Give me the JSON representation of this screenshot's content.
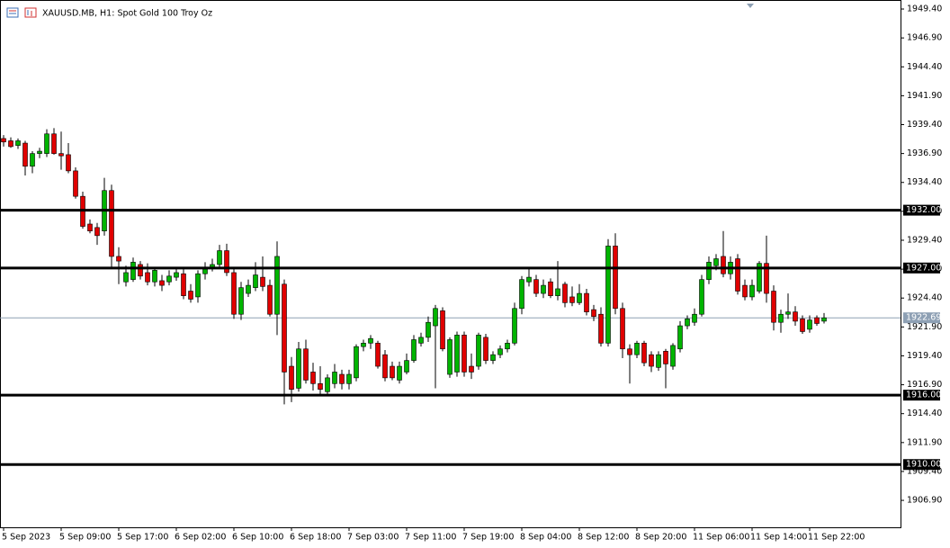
{
  "chart_data": {
    "type": "candlestick",
    "title": "XAUUSD.MB, H1:  Spot Gold 100 Troy Oz",
    "up_color": "#00b400",
    "down_color": "#e00000",
    "level_color": "#000000",
    "last_price_color": "#8ea0b4",
    "ylim": [
      1904.57,
      1950.18
    ],
    "yticks": [
      {
        "value": 1949.4,
        "label": "1949.40"
      },
      {
        "value": 1946.9,
        "label": "1946.90"
      },
      {
        "value": 1944.4,
        "label": "1944.40"
      },
      {
        "value": 1941.9,
        "label": "1941.90"
      },
      {
        "value": 1939.4,
        "label": "1939.40"
      },
      {
        "value": 1936.9,
        "label": "1936.90"
      },
      {
        "value": 1934.4,
        "label": "1934.40"
      },
      {
        "value": 1931.9,
        "label": "1931.90"
      },
      {
        "value": 1929.4,
        "label": "1929.40"
      },
      {
        "value": 1926.9,
        "label": "1926.90"
      },
      {
        "value": 1924.4,
        "label": "1924.40"
      },
      {
        "value": 1921.9,
        "label": "1921.90"
      },
      {
        "value": 1919.4,
        "label": "1919.40"
      },
      {
        "value": 1916.9,
        "label": "1916.90"
      },
      {
        "value": 1914.4,
        "label": "1914.40"
      },
      {
        "value": 1911.9,
        "label": "1911.90"
      },
      {
        "value": 1909.4,
        "label": "1909.40"
      },
      {
        "value": 1906.9,
        "label": "1906.90"
      }
    ],
    "levels": [
      {
        "value": 1932,
        "label": "1932.00"
      },
      {
        "value": 1927,
        "label": "1927.00"
      },
      {
        "value": 1916,
        "label": "1916.00"
      },
      {
        "value": 1910,
        "label": "1910.00"
      }
    ],
    "last_price": 1922.69,
    "open": [
      1938.2,
      1938.0,
      1937.6,
      1937.8,
      1935.8,
      1936.9,
      1936.9,
      1938.6,
      1936.9,
      1936.8,
      1935.4,
      1933.2,
      1930.8,
      1930.5,
      1930.2,
      1933.7,
      1928.0,
      1925.8,
      1926.0,
      1927.3,
      1926.6,
      1925.8,
      1925.9,
      1925.8,
      1926.2,
      1926.5,
      1925.0,
      1924.5,
      1926.5,
      1927.0,
      1927.3,
      1928.5,
      1926.6,
      1923.0,
      1924.8,
      1925.3,
      1926.2,
      1925.5,
      1923.0,
      1925.6,
      1918.5,
      1916.6,
      1920.0,
      1918.0,
      1917.0,
      1916.3,
      1917.0,
      1917.8,
      1917.0,
      1917.5,
      1920.2,
      1920.5,
      1920.5,
      1919.5,
      1918.5,
      1917.3,
      1918.0,
      1919.0,
      1920.5,
      1921.0,
      1922.0,
      1923.3,
      1917.8,
      1918.0,
      1921.2,
      1918.5,
      1918.5,
      1921.0,
      1919.0,
      1919.5,
      1920.0,
      1920.5,
      1923.5,
      1925.8,
      1926.0,
      1924.8,
      1925.8,
      1924.6,
      1925.6,
      1924.5,
      1924.0,
      1924.8,
      1923.4,
      1923.0,
      1920.5,
      1928.9,
      1923.5,
      1920.0,
      1919.5,
      1920.5,
      1919.5,
      1918.4,
      1919.8,
      1918.5,
      1920.0,
      1922.0,
      1922.3,
      1923.0,
      1926.0,
      1927.2,
      1928.0,
      1926.5,
      1927.8,
      1925.5,
      1924.5,
      1925.0,
      1927.4,
      1925.0,
      1922.3,
      1923.0,
      1923.2,
      1922.6,
      1921.7,
      1922.7,
      1922.4
    ],
    "high": [
      1938.5,
      1938.3,
      1938.2,
      1938.0,
      1937.1,
      1937.4,
      1939.0,
      1939.1,
      1938.8,
      1937.8,
      1935.7,
      1933.6,
      1931.2,
      1930.9,
      1934.8,
      1934.2,
      1928.8,
      1927.2,
      1927.9,
      1927.6,
      1927.4,
      1927.0,
      1926.4,
      1926.8,
      1927.0,
      1926.9,
      1925.6,
      1926.8,
      1927.5,
      1927.8,
      1929.0,
      1929.1,
      1927.0,
      1925.8,
      1926.0,
      1927.5,
      1928.0,
      1926.0,
      1929.3,
      1926.0,
      1919.3,
      1920.6,
      1920.8,
      1918.8,
      1918.5,
      1917.8,
      1918.7,
      1918.2,
      1918.2,
      1920.4,
      1920.8,
      1921.2,
      1920.7,
      1919.9,
      1918.9,
      1918.9,
      1919.6,
      1921.2,
      1921.4,
      1922.8,
      1923.8,
      1923.6,
      1921.0,
      1921.5,
      1921.5,
      1919.6,
      1921.4,
      1921.3,
      1919.8,
      1920.3,
      1920.8,
      1924.0,
      1926.3,
      1927.1,
      1926.4,
      1926.0,
      1926.1,
      1927.6,
      1925.8,
      1925.4,
      1925.6,
      1925.2,
      1923.8,
      1923.6,
      1929.5,
      1930.0,
      1924.0,
      1920.4,
      1920.7,
      1920.7,
      1919.8,
      1919.8,
      1920.0,
      1920.5,
      1922.4,
      1922.9,
      1923.5,
      1926.4,
      1928.0,
      1928.2,
      1930.2,
      1928.0,
      1928.2,
      1926.0,
      1926.0,
      1927.6,
      1929.8,
      1925.5,
      1923.4,
      1924.8,
      1923.7,
      1922.9,
      1922.9,
      1922.9,
      1923.1
    ],
    "low": [
      1937.5,
      1937.4,
      1937.3,
      1935.0,
      1935.2,
      1936.5,
      1936.6,
      1936.8,
      1935.5,
      1935.2,
      1933.0,
      1930.4,
      1930.0,
      1929.0,
      1929.8,
      1927.0,
      1925.6,
      1925.4,
      1925.8,
      1926.0,
      1925.5,
      1925.4,
      1925.0,
      1925.5,
      1925.9,
      1924.3,
      1924.0,
      1924.0,
      1926.0,
      1926.7,
      1927.0,
      1926.3,
      1922.6,
      1922.5,
      1924.5,
      1925.0,
      1925.0,
      1922.8,
      1921.2,
      1915.2,
      1915.4,
      1916.3,
      1917.0,
      1916.4,
      1916.0,
      1916.0,
      1916.6,
      1916.5,
      1916.5,
      1917.2,
      1919.8,
      1920.0,
      1918.3,
      1917.2,
      1917.3,
      1917.0,
      1917.8,
      1918.8,
      1920.2,
      1920.6,
      1916.6,
      1919.8,
      1917.5,
      1917.6,
      1917.6,
      1917.4,
      1918.2,
      1918.7,
      1918.7,
      1919.2,
      1919.7,
      1920.3,
      1923.0,
      1925.4,
      1924.5,
      1924.4,
      1924.4,
      1924.2,
      1923.6,
      1923.7,
      1923.8,
      1922.9,
      1922.4,
      1920.2,
      1920.2,
      1923.0,
      1919.2,
      1917.0,
      1919.2,
      1918.5,
      1918.0,
      1918.1,
      1916.6,
      1918.2,
      1919.7,
      1921.7,
      1922.0,
      1922.8,
      1925.6,
      1926.8,
      1926.2,
      1926.0,
      1924.7,
      1924.2,
      1924.2,
      1924.8,
      1924.0,
      1921.6,
      1921.4,
      1922.6,
      1922.0,
      1921.3,
      1921.4,
      1922.0,
      1922.2
    ],
    "close": [
      1937.9,
      1937.5,
      1938.0,
      1935.8,
      1936.9,
      1937.1,
      1938.6,
      1936.9,
      1936.7,
      1935.4,
      1933.2,
      1930.6,
      1930.2,
      1929.8,
      1933.7,
      1928.0,
      1927.6,
      1926.6,
      1927.5,
      1926.3,
      1925.8,
      1926.8,
      1925.5,
      1926.3,
      1926.6,
      1924.6,
      1924.3,
      1926.5,
      1926.9,
      1927.3,
      1928.5,
      1926.6,
      1923.0,
      1925.3,
      1925.5,
      1926.4,
      1925.4,
      1923.0,
      1928.0,
      1918.0,
      1916.5,
      1920.0,
      1917.3,
      1917.0,
      1916.5,
      1917.5,
      1918.0,
      1917.0,
      1917.8,
      1920.2,
      1920.5,
      1920.9,
      1918.5,
      1917.5,
      1917.5,
      1918.5,
      1919.0,
      1920.8,
      1921.0,
      1922.3,
      1923.5,
      1920.0,
      1920.8,
      1921.2,
      1918.0,
      1918.0,
      1921.2,
      1919.0,
      1919.5,
      1920.0,
      1920.5,
      1923.5,
      1926.0,
      1926.2,
      1924.8,
      1925.5,
      1924.6,
      1925.2,
      1924.0,
      1924.0,
      1924.8,
      1923.2,
      1922.8,
      1920.5,
      1928.9,
      1923.5,
      1920.0,
      1919.5,
      1920.5,
      1918.8,
      1918.5,
      1919.5,
      1918.7,
      1920.3,
      1922.0,
      1922.6,
      1923.0,
      1926.0,
      1927.5,
      1927.8,
      1926.5,
      1927.5,
      1925.0,
      1924.5,
      1925.5,
      1927.4,
      1924.8,
      1922.3,
      1923.0,
      1923.2,
      1922.4,
      1921.5,
      1922.5,
      1922.2,
      1922.69
    ],
    "categories": [
      "5 Sep 2023",
      null,
      null,
      null,
      null,
      null,
      null,
      null,
      "5 Sep 09:00",
      null,
      null,
      null,
      null,
      null,
      null,
      null,
      "5 Sep 17:00",
      null,
      null,
      null,
      null,
      null,
      null,
      null,
      "6 Sep 02:00",
      null,
      null,
      null,
      null,
      null,
      null,
      null,
      "6 Sep 10:00",
      null,
      null,
      null,
      null,
      null,
      null,
      null,
      "6 Sep 18:00",
      null,
      null,
      null,
      null,
      null,
      null,
      null,
      "7 Sep 03:00",
      null,
      null,
      null,
      null,
      null,
      null,
      null,
      "7 Sep 11:00",
      null,
      null,
      null,
      null,
      null,
      null,
      null,
      "7 Sep 19:00",
      null,
      null,
      null,
      null,
      null,
      null,
      null,
      "8 Sep 04:00",
      null,
      null,
      null,
      null,
      null,
      null,
      null,
      "8 Sep 12:00",
      null,
      null,
      null,
      null,
      null,
      null,
      null,
      "8 Sep 20:00",
      null,
      null,
      null,
      null,
      null,
      null,
      null,
      "11 Sep 06:00",
      null,
      null,
      null,
      null,
      null,
      null,
      null,
      "11 Sep 14:00",
      null,
      null,
      null,
      null,
      null,
      null,
      null,
      "11 Sep 22:00",
      null,
      null
    ]
  }
}
